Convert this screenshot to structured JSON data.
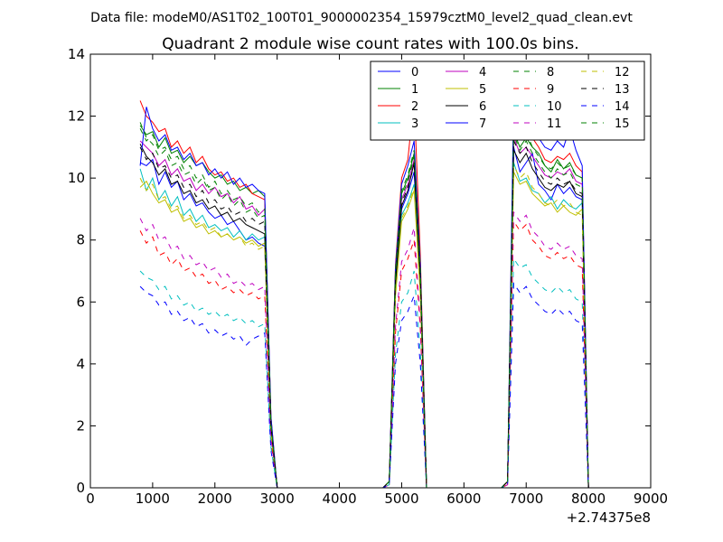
{
  "suptitle": "Data file: modeM0/AS1T02_100T01_9000002354_15979cztM0_level2_quad_clean.evt",
  "chart_data": {
    "type": "line",
    "title": "Quadrant 2 module wise count rates with 100.0s bins.",
    "xlabel": "",
    "ylabel": "",
    "x_offset_label": "+2.74375e8",
    "xlim": [
      0,
      9000
    ],
    "ylim": [
      0,
      14
    ],
    "xticks": [
      0,
      1000,
      2000,
      3000,
      4000,
      5000,
      6000,
      7000,
      8000,
      9000
    ],
    "yticks": [
      0,
      2,
      4,
      6,
      8,
      10,
      12,
      14
    ],
    "legend_position": "top-right",
    "x": [
      800,
      900,
      1000,
      1100,
      1200,
      1300,
      1400,
      1500,
      1600,
      1700,
      1800,
      1900,
      2000,
      2100,
      2200,
      2300,
      2400,
      2500,
      2600,
      2700,
      2800,
      2900,
      3000,
      3100,
      4700,
      4800,
      4900,
      5000,
      5100,
      5200,
      5300,
      5400,
      6600,
      6700,
      6800,
      6900,
      7000,
      7100,
      7200,
      7300,
      7400,
      7500,
      7600,
      7700,
      7800,
      7900,
      8000
    ],
    "series": [
      {
        "name": "0",
        "color": "#0000ff",
        "dash": "solid",
        "values": [
          10.5,
          10.4,
          10.6,
          9.8,
          10.2,
          9.7,
          9.9,
          9.3,
          9.5,
          9.1,
          9.2,
          8.9,
          8.7,
          8.8,
          8.5,
          8.6,
          8.3,
          8.0,
          8.1,
          7.9,
          7.8,
          2.0,
          0,
          0,
          0,
          0.2,
          6.5,
          9.0,
          9.5,
          10.2,
          6.5,
          0,
          0,
          0.2,
          11.0,
          10.2,
          10.5,
          10.8,
          9.8,
          9.6,
          9.3,
          9.8,
          9.5,
          9.7,
          9.4,
          9.3,
          0
        ]
      },
      {
        "name": "1",
        "color": "#008000",
        "dash": "solid",
        "values": [
          11.7,
          11.4,
          11.5,
          11.0,
          11.3,
          10.8,
          10.9,
          10.5,
          10.7,
          10.4,
          10.5,
          10.2,
          10.0,
          10.1,
          9.8,
          9.9,
          9.6,
          9.7,
          9.5,
          9.6,
          9.4,
          2.2,
          0,
          0,
          0,
          0.2,
          7.0,
          9.5,
          10.0,
          10.8,
          7.0,
          0,
          0,
          0.2,
          11.5,
          11.0,
          11.3,
          11.0,
          10.8,
          10.4,
          10.2,
          10.6,
          10.3,
          10.5,
          10.1,
          10.0,
          0
        ]
      },
      {
        "name": "2",
        "color": "#ff0000",
        "dash": "solid",
        "values": [
          12.5,
          12.0,
          11.8,
          11.5,
          11.6,
          11.0,
          11.2,
          10.8,
          11.0,
          10.5,
          10.7,
          10.3,
          10.1,
          10.2,
          9.9,
          10.0,
          9.7,
          9.8,
          9.5,
          9.4,
          9.3,
          2.3,
          0,
          0,
          0,
          0.2,
          7.2,
          10.0,
          10.6,
          12.6,
          7.5,
          0,
          0,
          0.2,
          11.8,
          11.5,
          12.0,
          11.3,
          11.0,
          10.6,
          10.5,
          10.7,
          10.6,
          10.8,
          10.4,
          10.2,
          0
        ]
      },
      {
        "name": "3",
        "color": "#00bfbf",
        "dash": "solid",
        "values": [
          10.3,
          9.6,
          10.0,
          9.3,
          9.6,
          9.1,
          9.4,
          8.8,
          9.0,
          8.6,
          8.8,
          8.4,
          8.5,
          8.3,
          8.4,
          8.1,
          8.3,
          8.0,
          8.2,
          8.0,
          8.1,
          1.9,
          0,
          0,
          0,
          0.2,
          6.3,
          8.8,
          9.2,
          9.8,
          6.3,
          0,
          0,
          0.2,
          10.5,
          9.9,
          10.0,
          9.6,
          9.5,
          9.2,
          9.4,
          9.0,
          9.3,
          9.1,
          9.0,
          9.2,
          0
        ]
      },
      {
        "name": "4",
        "color": "#bf00bf",
        "dash": "solid",
        "values": [
          11.2,
          11.0,
          10.8,
          10.4,
          10.6,
          10.1,
          10.3,
          9.9,
          10.0,
          9.6,
          9.8,
          9.5,
          9.7,
          9.4,
          9.5,
          9.2,
          9.4,
          9.0,
          9.1,
          8.8,
          9.0,
          2.1,
          0,
          0,
          0,
          0.2,
          6.8,
          9.3,
          9.8,
          10.6,
          6.9,
          0,
          0,
          0.2,
          11.3,
          10.8,
          11.0,
          10.7,
          10.4,
          10.1,
          10.0,
          10.2,
          10.1,
          10.3,
          9.9,
          9.8,
          0
        ]
      },
      {
        "name": "5",
        "color": "#bfbf00",
        "dash": "solid",
        "values": [
          9.7,
          9.9,
          9.5,
          9.2,
          9.3,
          8.9,
          9.0,
          8.6,
          8.7,
          8.4,
          8.5,
          8.2,
          8.3,
          8.1,
          8.2,
          8.0,
          8.1,
          7.9,
          8.0,
          7.8,
          7.9,
          1.8,
          0,
          0,
          0,
          0.2,
          6.2,
          8.6,
          9.0,
          9.6,
          6.2,
          0,
          0,
          0.2,
          10.2,
          9.8,
          9.9,
          9.5,
          9.3,
          9.1,
          9.2,
          8.9,
          9.1,
          8.9,
          8.8,
          9.0,
          0
        ]
      },
      {
        "name": "6",
        "color": "#000000",
        "dash": "solid",
        "values": [
          11.1,
          10.7,
          10.5,
          10.1,
          10.3,
          9.8,
          9.9,
          9.5,
          9.6,
          9.2,
          9.3,
          9.0,
          9.1,
          8.8,
          8.9,
          8.6,
          8.7,
          8.5,
          8.4,
          8.3,
          8.2,
          2.0,
          0,
          0,
          0,
          0.2,
          6.6,
          9.1,
          9.6,
          10.5,
          6.7,
          0,
          0,
          0.2,
          10.9,
          10.5,
          10.8,
          10.3,
          10.0,
          9.7,
          9.6,
          9.8,
          9.7,
          9.9,
          9.5,
          9.4,
          0
        ]
      },
      {
        "name": "7",
        "color": "#0000ff",
        "dash": "solid",
        "values": [
          10.4,
          12.3,
          11.6,
          11.2,
          11.4,
          10.9,
          11.0,
          10.6,
          10.8,
          10.4,
          10.5,
          10.1,
          10.3,
          10.0,
          10.2,
          9.8,
          10.0,
          9.7,
          9.8,
          9.6,
          9.5,
          2.3,
          0,
          0,
          0,
          0.2,
          7.1,
          9.8,
          10.4,
          11.2,
          7.2,
          0,
          0,
          0.2,
          12.6,
          12.5,
          11.9,
          11.6,
          11.3,
          11.0,
          10.9,
          11.2,
          11.0,
          11.6,
          10.9,
          10.4,
          0
        ]
      },
      {
        "name": "8",
        "color": "#008000",
        "dash": "dashed",
        "values": [
          11.8,
          11.3,
          11.1,
          10.7,
          10.9,
          10.4,
          10.5,
          10.1,
          10.2,
          9.8,
          10.0,
          9.6,
          9.7,
          9.3,
          9.5,
          9.1,
          9.3,
          8.9,
          9.0,
          8.7,
          8.8,
          2.1,
          0,
          0,
          0,
          0.2,
          6.9,
          9.4,
          9.9,
          10.7,
          6.9,
          0,
          0,
          0.2,
          11.4,
          10.9,
          11.2,
          10.8,
          10.5,
          10.2,
          10.0,
          10.3,
          10.1,
          10.2,
          9.8,
          9.7,
          0
        ]
      },
      {
        "name": "9",
        "color": "#ff0000",
        "dash": "dashed",
        "values": [
          8.3,
          7.9,
          8.1,
          7.5,
          7.6,
          7.2,
          7.4,
          7.0,
          7.1,
          6.8,
          6.9,
          6.6,
          6.7,
          6.4,
          6.5,
          6.3,
          6.4,
          6.2,
          6.3,
          6.1,
          6.2,
          1.5,
          0,
          0,
          0,
          0.1,
          5.0,
          7.0,
          7.4,
          8.0,
          5.1,
          0,
          0,
          0.1,
          8.6,
          8.3,
          8.5,
          8.0,
          7.8,
          7.5,
          7.4,
          7.6,
          7.4,
          7.5,
          7.2,
          7.1,
          0
        ]
      },
      {
        "name": "10",
        "color": "#00bfbf",
        "dash": "dashed",
        "values": [
          7.0,
          6.8,
          6.7,
          6.4,
          6.5,
          6.1,
          6.2,
          5.9,
          6.0,
          5.7,
          5.8,
          5.6,
          5.7,
          5.5,
          5.6,
          5.4,
          5.5,
          5.3,
          5.4,
          5.2,
          5.3,
          1.3,
          0,
          0,
          0,
          0.1,
          4.3,
          6.0,
          6.3,
          7.0,
          4.4,
          0,
          0,
          0.1,
          7.4,
          7.1,
          7.2,
          6.8,
          6.6,
          6.4,
          6.3,
          6.5,
          6.3,
          6.4,
          6.1,
          6.0,
          0
        ]
      },
      {
        "name": "11",
        "color": "#bf00bf",
        "dash": "dashed",
        "values": [
          8.7,
          8.3,
          8.5,
          8.0,
          8.1,
          7.7,
          7.8,
          7.4,
          7.5,
          7.2,
          7.3,
          7.0,
          7.1,
          6.8,
          6.9,
          6.6,
          6.7,
          6.5,
          6.6,
          6.4,
          6.5,
          1.6,
          0,
          0,
          0,
          0.1,
          5.2,
          7.3,
          7.7,
          8.4,
          5.3,
          0,
          0,
          0.1,
          8.9,
          8.6,
          8.8,
          8.3,
          8.1,
          7.8,
          7.7,
          7.9,
          7.7,
          7.8,
          7.5,
          7.4,
          0
        ]
      },
      {
        "name": "12",
        "color": "#bfbf00",
        "dash": "dashed",
        "values": [
          10.0,
          9.6,
          9.8,
          9.3,
          9.4,
          9.0,
          9.1,
          8.7,
          8.8,
          8.5,
          8.6,
          8.3,
          8.4,
          8.1,
          8.2,
          8.0,
          8.1,
          7.8,
          7.9,
          7.7,
          7.8,
          1.9,
          0,
          0,
          0,
          0.2,
          6.2,
          8.7,
          9.1,
          9.7,
          6.3,
          0,
          0,
          0.2,
          10.4,
          10.0,
          10.2,
          9.7,
          9.5,
          9.2,
          9.1,
          9.3,
          9.1,
          9.2,
          8.9,
          8.8,
          0
        ]
      },
      {
        "name": "13",
        "color": "#000000",
        "dash": "dashed",
        "values": [
          11.0,
          10.6,
          10.8,
          10.3,
          10.4,
          10.0,
          10.1,
          9.7,
          9.8,
          9.4,
          9.6,
          9.2,
          9.3,
          9.0,
          9.1,
          8.8,
          8.9,
          8.6,
          8.7,
          8.5,
          8.6,
          2.0,
          0,
          0,
          0,
          0.2,
          6.7,
          9.2,
          9.7,
          10.4,
          6.8,
          0,
          0,
          0.2,
          11.2,
          10.8,
          11.0,
          10.5,
          10.2,
          9.9,
          9.8,
          10.0,
          9.8,
          9.9,
          9.6,
          9.5,
          0
        ]
      },
      {
        "name": "14",
        "color": "#0000ff",
        "dash": "dashed",
        "values": [
          6.5,
          6.3,
          6.2,
          5.9,
          6.0,
          5.6,
          5.7,
          5.4,
          5.5,
          5.2,
          5.3,
          5.0,
          5.1,
          4.9,
          5.0,
          4.8,
          4.9,
          4.6,
          4.8,
          4.9,
          5.0,
          1.2,
          0,
          0,
          0,
          0.1,
          4.0,
          5.4,
          5.7,
          6.2,
          4.0,
          0,
          0,
          0.1,
          6.6,
          6.3,
          6.5,
          6.1,
          5.9,
          5.7,
          5.6,
          5.8,
          5.6,
          5.7,
          5.4,
          5.3,
          0
        ]
      },
      {
        "name": "15",
        "color": "#008000",
        "dash": "dashed",
        "values": [
          11.6,
          11.2,
          11.4,
          10.9,
          11.0,
          10.6,
          10.7,
          10.3,
          10.4,
          10.0,
          10.1,
          9.7,
          9.9,
          9.5,
          9.6,
          9.3,
          9.4,
          9.1,
          9.2,
          8.9,
          9.0,
          2.1,
          0,
          0,
          0,
          0.2,
          7.0,
          9.6,
          10.1,
          10.9,
          7.1,
          0,
          0,
          0.2,
          11.7,
          11.3,
          11.5,
          11.0,
          10.7,
          10.4,
          10.3,
          10.5,
          10.3,
          10.4,
          10.1,
          10.0,
          0
        ]
      }
    ]
  }
}
